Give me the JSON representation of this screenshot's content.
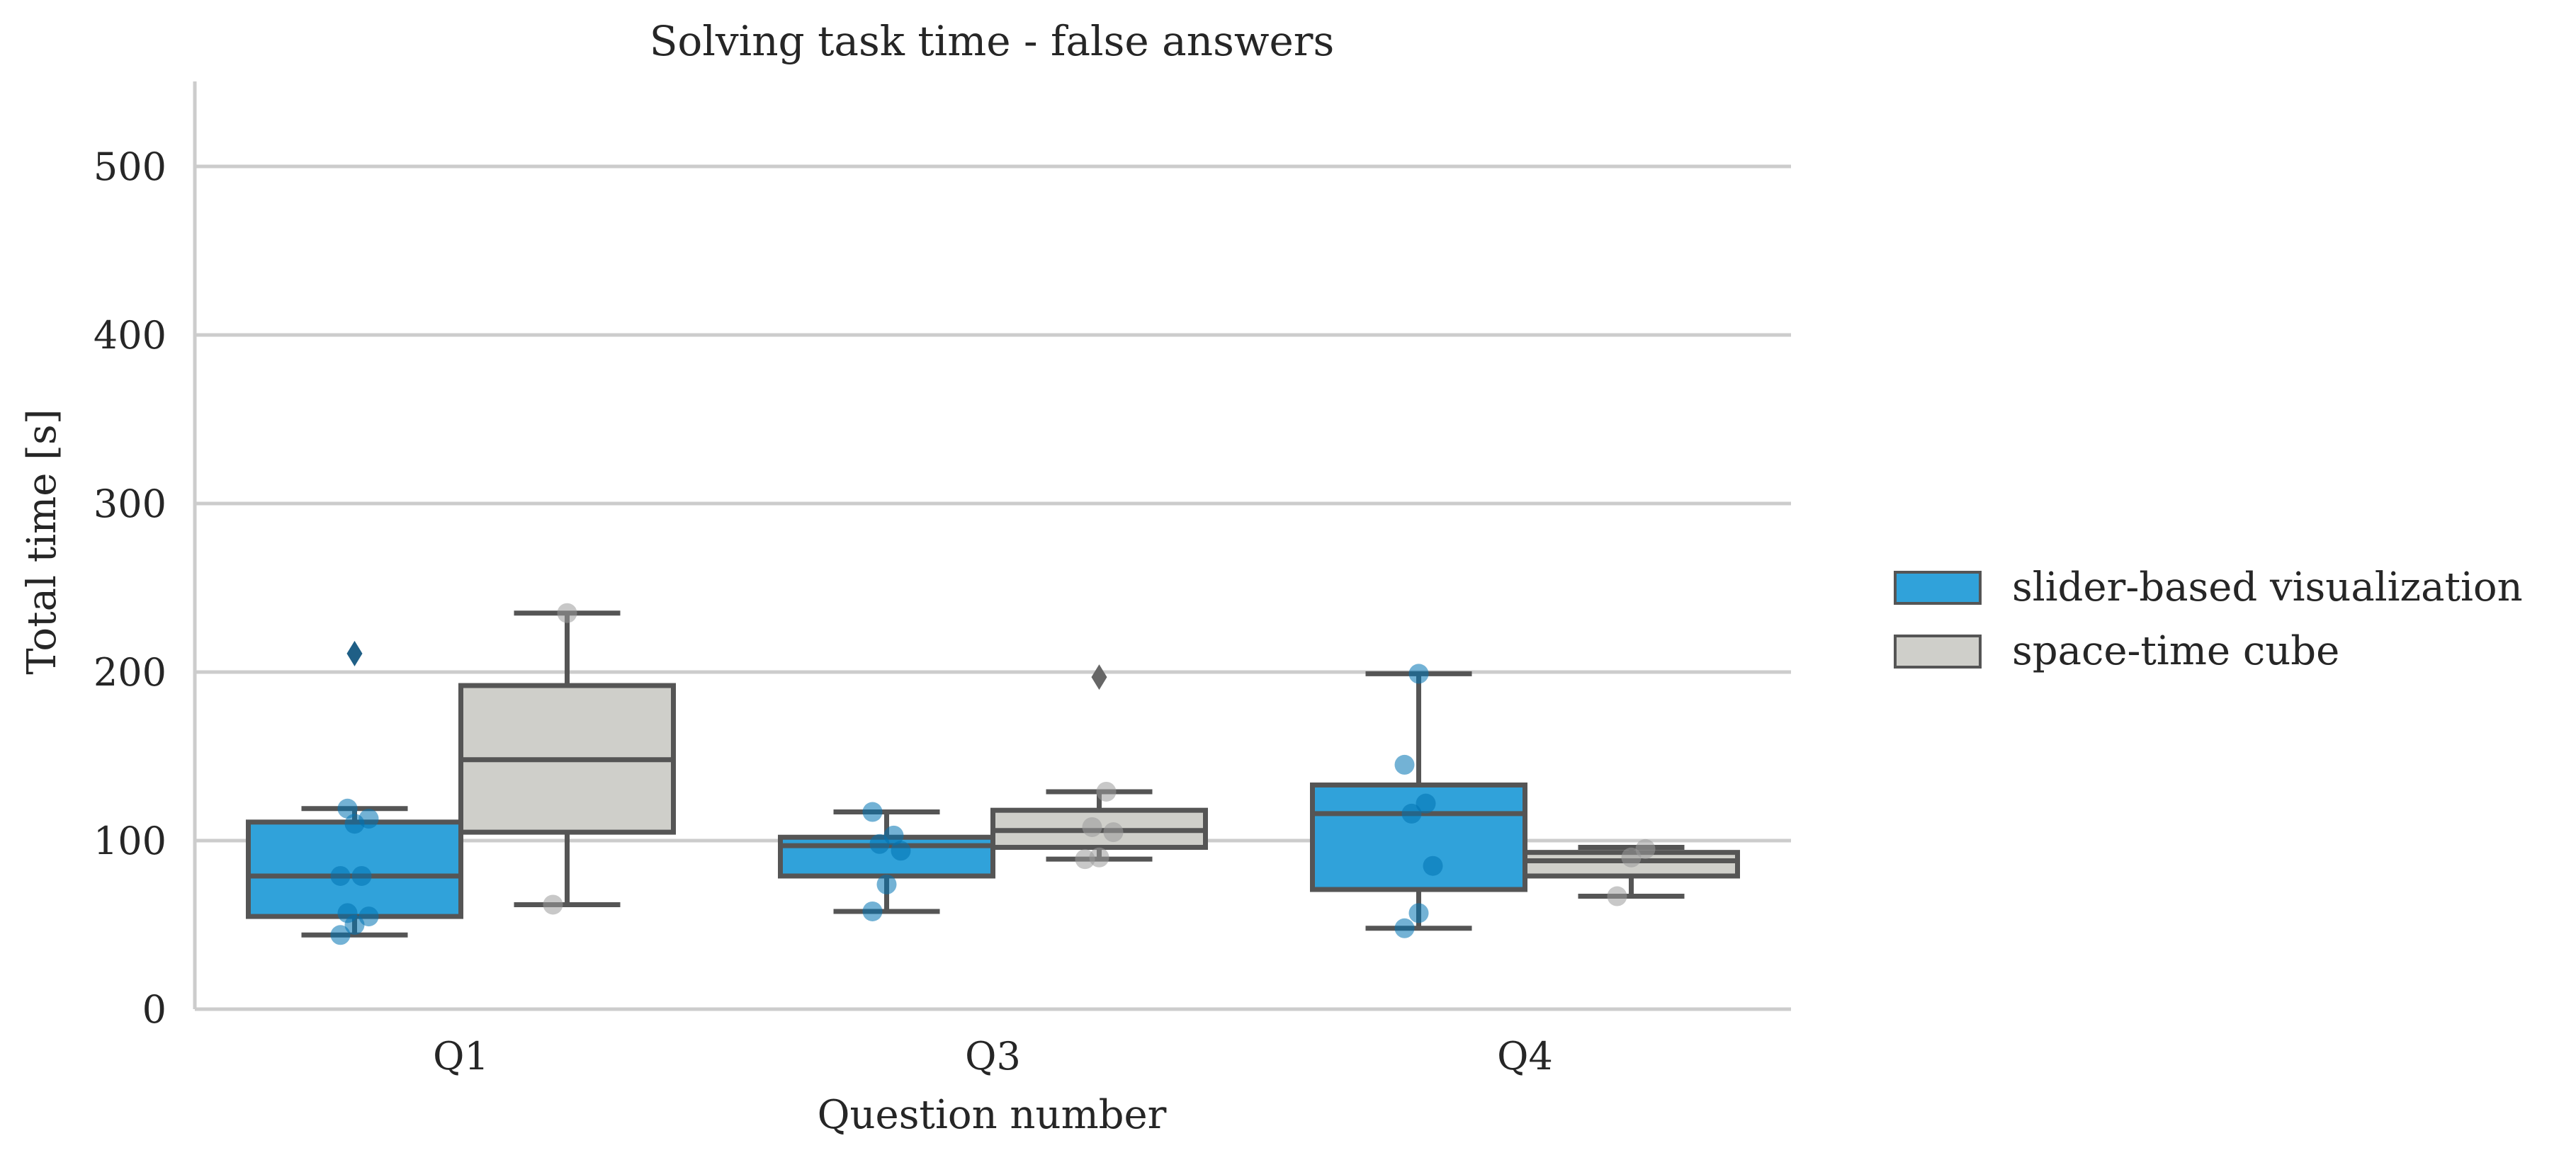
{
  "chart_data": {
    "type": "box",
    "title": "Solving task time - false answers",
    "xlabel": "Question number",
    "ylabel": "Total time [s]",
    "ylim": [
      0,
      550
    ],
    "yticks": [
      0,
      100,
      200,
      300,
      400,
      500
    ],
    "categories": [
      "Q1",
      "Q3",
      "Q4"
    ],
    "grid": true,
    "legend_position": "right",
    "series": [
      {
        "name": "slider-based visualization",
        "color": "#30a2da",
        "point_color": "#0072b2",
        "boxes": [
          {
            "category": "Q1",
            "whisker_low": 44,
            "q1": 55,
            "median": 79,
            "q3": 111,
            "whisker_high": 119,
            "outliers": [
              211
            ],
            "points": [
              44,
              50,
              55,
              57,
              79,
              79,
              110,
              113,
              119
            ]
          },
          {
            "category": "Q3",
            "whisker_low": 58,
            "q1": 79,
            "median": 97,
            "q3": 102,
            "whisker_high": 117,
            "outliers": [],
            "points": [
              58,
              74,
              94,
              98,
              103,
              117
            ]
          },
          {
            "category": "Q4",
            "whisker_low": 48,
            "q1": 71,
            "median": 116,
            "q3": 133,
            "whisker_high": 199,
            "outliers": [],
            "points": [
              48,
              57,
              85,
              116,
              122,
              145,
              199
            ]
          }
        ]
      },
      {
        "name": "space-time cube",
        "color": "#cfcfca",
        "point_color": "#9a9a9a",
        "boxes": [
          {
            "category": "Q1",
            "whisker_low": 62,
            "q1": 105,
            "median": 148,
            "q3": 192,
            "whisker_high": 235,
            "outliers": [],
            "points": [
              62,
              235
            ]
          },
          {
            "category": "Q3",
            "whisker_low": 89,
            "q1": 96,
            "median": 106,
            "q3": 118,
            "whisker_high": 129,
            "outliers": [
              197
            ],
            "points": [
              89,
              90,
              105,
              108,
              129
            ]
          },
          {
            "category": "Q4",
            "whisker_low": 67,
            "q1": 79,
            "median": 88,
            "q3": 93,
            "whisker_high": 96,
            "outliers": [],
            "points": [
              67,
              90,
              95
            ]
          }
        ]
      }
    ]
  }
}
